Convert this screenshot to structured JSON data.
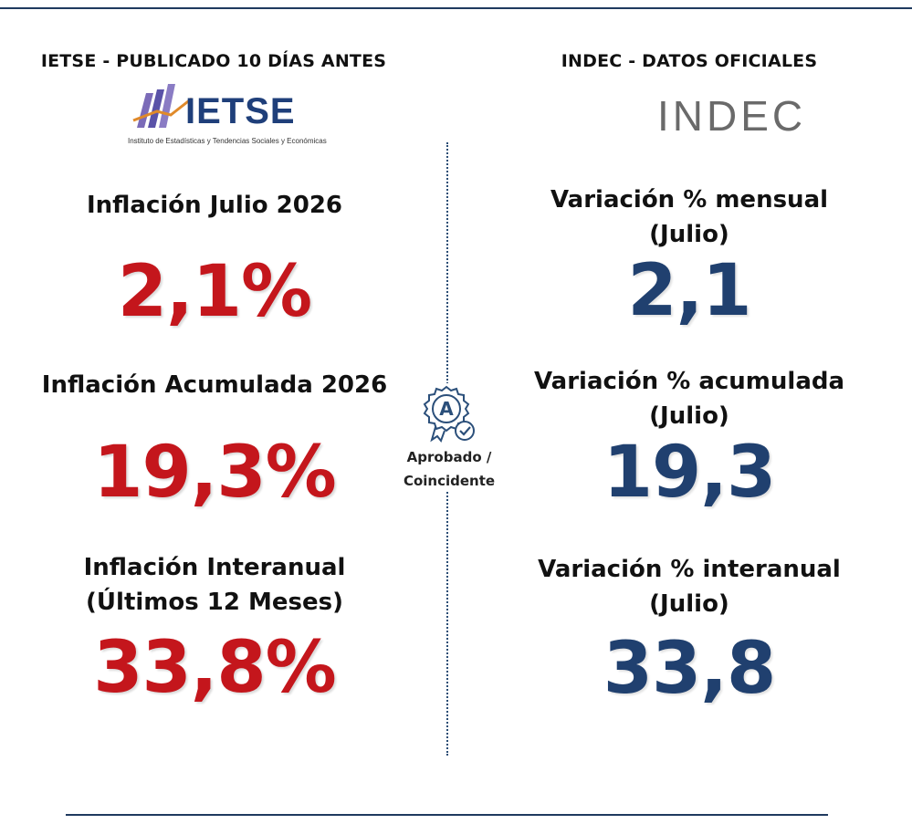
{
  "left": {
    "heading": "IETSE - PUBLICADO 10 DÍAS ANTES",
    "logo": {
      "name": "IETSE",
      "subtitle": "Instituto de Estadísticas y Tendencias Sociales y Económicas"
    },
    "rows": [
      {
        "label": "Inflación Julio 2026",
        "value": "2,1%"
      },
      {
        "label": "Inflación Acumulada 2026",
        "value": "19,3%"
      },
      {
        "label": "Inflación Interanual",
        "label2": "(Últimos 12 Meses)",
        "value": "33,8%"
      }
    ]
  },
  "right": {
    "heading": "INDEC - DATOS OFICIALES",
    "logo": {
      "name": "INDEC"
    },
    "rows": [
      {
        "label": "Variación % mensual",
        "label2": "(Julio)",
        "value": "2,1"
      },
      {
        "label": "Variación % acumulada",
        "label2": "(Julio)",
        "value": "19,3"
      },
      {
        "label": "Variación % interanual",
        "label2": "(Julio)",
        "value": "33,8"
      }
    ]
  },
  "badge": {
    "letter": "A",
    "line1": "Aprobado /",
    "line2": "Coincidente"
  },
  "colors": {
    "left_value": "#c4161c",
    "right_value": "#20406f",
    "rule": "#1f3a5f"
  }
}
